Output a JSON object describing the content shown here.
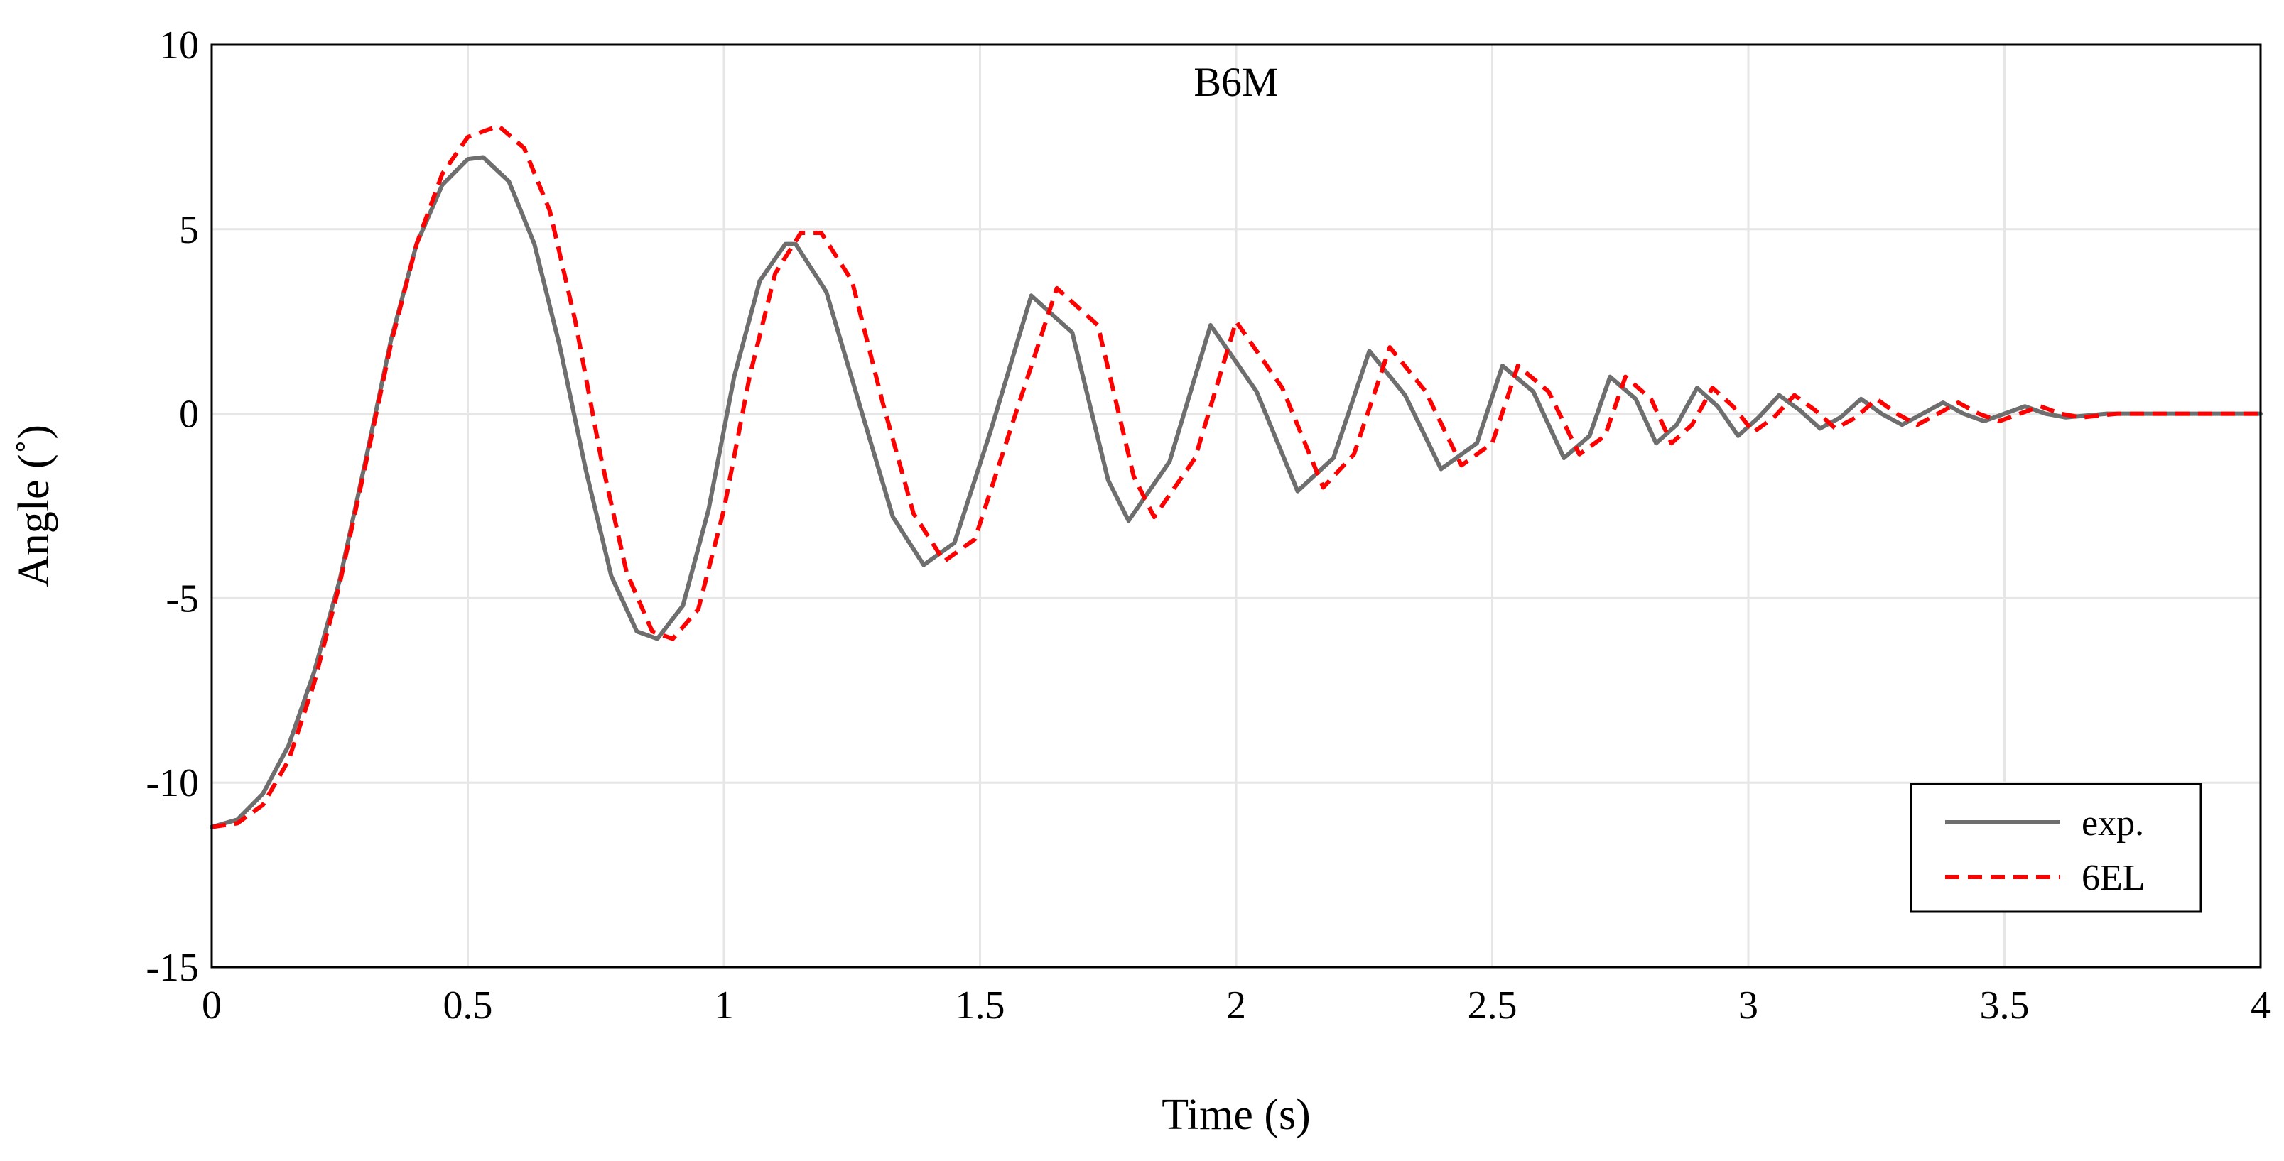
{
  "chart_data": {
    "type": "line",
    "title": "B6M",
    "xlabel": "Time (s)",
    "ylabel": "Angle (˚)",
    "xlim": [
      0,
      4
    ],
    "ylim": [
      -15,
      10
    ],
    "xticks": [
      0,
      0.5,
      1,
      1.5,
      2,
      2.5,
      3,
      3.5,
      4
    ],
    "xtick_labels": [
      "0",
      "0.5",
      "1",
      "1.5",
      "2",
      "2.5",
      "3",
      "3.5",
      "4"
    ],
    "yticks": [
      -15,
      -10,
      -5,
      0,
      5,
      10
    ],
    "ytick_labels": [
      "-15",
      "-10",
      "-5",
      "0",
      "5",
      "10"
    ],
    "grid": true,
    "legend_position": "bottom-right",
    "series": [
      {
        "name": "exp.",
        "color": "#6e6e6e",
        "dash": "solid",
        "x": [
          0,
          0.05,
          0.1,
          0.15,
          0.2,
          0.25,
          0.3,
          0.35,
          0.4,
          0.45,
          0.5,
          0.53,
          0.58,
          0.63,
          0.68,
          0.73,
          0.78,
          0.83,
          0.87,
          0.92,
          0.97,
          1.02,
          1.07,
          1.12,
          1.14,
          1.2,
          1.27,
          1.33,
          1.39,
          1.45,
          1.52,
          1.6,
          1.68,
          1.75,
          1.79,
          1.87,
          1.95,
          2.04,
          2.12,
          2.19,
          2.26,
          2.33,
          2.4,
          2.47,
          2.52,
          2.58,
          2.64,
          2.69,
          2.73,
          2.78,
          2.82,
          2.86,
          2.9,
          2.94,
          2.98,
          3.02,
          3.06,
          3.1,
          3.14,
          3.18,
          3.22,
          3.26,
          3.3,
          3.34,
          3.38,
          3.42,
          3.46,
          3.5,
          3.54,
          3.58,
          3.62,
          3.7,
          3.8,
          4.0
        ],
        "y": [
          -11.2,
          -11.0,
          -10.3,
          -9.0,
          -7.0,
          -4.5,
          -1.3,
          2.0,
          4.6,
          6.2,
          6.9,
          6.95,
          6.3,
          4.6,
          1.8,
          -1.5,
          -4.4,
          -5.9,
          -6.1,
          -5.2,
          -2.6,
          1.0,
          3.6,
          4.6,
          4.6,
          3.3,
          0.0,
          -2.8,
          -4.1,
          -3.5,
          -0.5,
          3.2,
          2.2,
          -1.8,
          -2.9,
          -1.3,
          2.4,
          0.6,
          -2.1,
          -1.2,
          1.7,
          0.5,
          -1.5,
          -0.8,
          1.3,
          0.6,
          -1.2,
          -0.6,
          1.0,
          0.4,
          -0.8,
          -0.3,
          0.7,
          0.2,
          -0.6,
          -0.1,
          0.5,
          0.1,
          -0.4,
          -0.1,
          0.4,
          0.0,
          -0.3,
          0.0,
          0.3,
          0.0,
          -0.2,
          0.0,
          0.2,
          0.0,
          -0.1,
          0.0,
          0.0,
          0.0
        ]
      },
      {
        "name": "6EL",
        "color": "#ff0000",
        "dash": "dashed",
        "x": [
          0,
          0.05,
          0.1,
          0.15,
          0.2,
          0.25,
          0.3,
          0.35,
          0.4,
          0.45,
          0.5,
          0.56,
          0.61,
          0.66,
          0.71,
          0.76,
          0.81,
          0.86,
          0.9,
          0.95,
          1.0,
          1.05,
          1.1,
          1.15,
          1.19,
          1.25,
          1.31,
          1.37,
          1.43,
          1.49,
          1.56,
          1.65,
          1.73,
          1.8,
          1.84,
          1.92,
          2.0,
          2.09,
          2.17,
          2.23,
          2.3,
          2.37,
          2.44,
          2.5,
          2.55,
          2.61,
          2.67,
          2.72,
          2.76,
          2.81,
          2.85,
          2.89,
          2.93,
          2.97,
          3.01,
          3.05,
          3.09,
          3.13,
          3.17,
          3.21,
          3.25,
          3.29,
          3.33,
          3.37,
          3.41,
          3.45,
          3.49,
          3.53,
          3.57,
          3.61,
          3.65,
          3.72,
          3.82,
          4.0
        ],
        "y": [
          -11.2,
          -11.1,
          -10.6,
          -9.4,
          -7.3,
          -4.6,
          -1.4,
          1.9,
          4.6,
          6.5,
          7.5,
          7.8,
          7.2,
          5.5,
          2.5,
          -1.2,
          -4.3,
          -5.9,
          -6.1,
          -5.3,
          -2.6,
          1.0,
          3.8,
          4.9,
          4.9,
          3.6,
          0.3,
          -2.7,
          -4.0,
          -3.4,
          -0.4,
          3.4,
          2.4,
          -1.7,
          -2.8,
          -1.2,
          2.5,
          0.7,
          -2.0,
          -1.1,
          1.8,
          0.6,
          -1.4,
          -0.8,
          1.3,
          0.6,
          -1.1,
          -0.6,
          1.0,
          0.4,
          -0.8,
          -0.3,
          0.7,
          0.2,
          -0.5,
          -0.1,
          0.5,
          0.1,
          -0.4,
          -0.1,
          0.4,
          0.0,
          -0.3,
          0.0,
          0.3,
          0.0,
          -0.2,
          0.0,
          0.2,
          0.0,
          -0.1,
          0.0,
          0.0,
          0.0
        ]
      }
    ]
  }
}
